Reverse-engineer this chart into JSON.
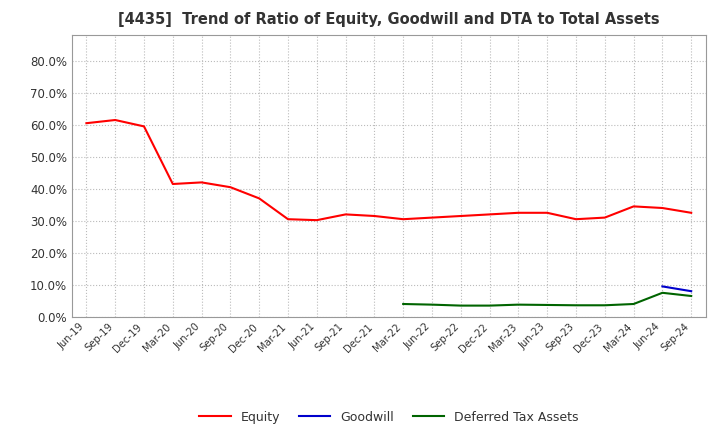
{
  "title": "[4435]  Trend of Ratio of Equity, Goodwill and DTA to Total Assets",
  "x_labels": [
    "Jun-19",
    "Sep-19",
    "Dec-19",
    "Mar-20",
    "Jun-20",
    "Sep-20",
    "Dec-20",
    "Mar-21",
    "Jun-21",
    "Sep-21",
    "Dec-21",
    "Mar-22",
    "Jun-22",
    "Sep-22",
    "Dec-22",
    "Mar-23",
    "Jun-23",
    "Sep-23",
    "Dec-23",
    "Mar-24",
    "Jun-24",
    "Sep-24"
  ],
  "equity": [
    0.605,
    0.615,
    0.595,
    0.415,
    0.42,
    0.405,
    0.37,
    0.305,
    0.302,
    0.32,
    0.315,
    0.305,
    0.31,
    0.315,
    0.32,
    0.325,
    0.325,
    0.305,
    0.31,
    0.345,
    0.34,
    0.325
  ],
  "goodwill": [
    null,
    null,
    null,
    null,
    null,
    null,
    null,
    null,
    null,
    null,
    null,
    null,
    null,
    null,
    null,
    null,
    null,
    null,
    null,
    null,
    0.095,
    0.08
  ],
  "dta": [
    null,
    null,
    null,
    null,
    null,
    null,
    null,
    null,
    null,
    null,
    null,
    0.04,
    0.038,
    0.035,
    0.035,
    0.038,
    0.037,
    0.036,
    0.036,
    0.04,
    0.075,
    0.065
  ],
  "equity_color": "#FF0000",
  "goodwill_color": "#0000CC",
  "dta_color": "#006400",
  "ylim": [
    0.0,
    0.88
  ],
  "yticks": [
    0.0,
    0.1,
    0.2,
    0.3,
    0.4,
    0.5,
    0.6,
    0.7,
    0.8
  ],
  "background_color": "#FFFFFF",
  "grid_color": "#BBBBBB",
  "title_color": "#333333",
  "legend_labels": [
    "Equity",
    "Goodwill",
    "Deferred Tax Assets"
  ]
}
